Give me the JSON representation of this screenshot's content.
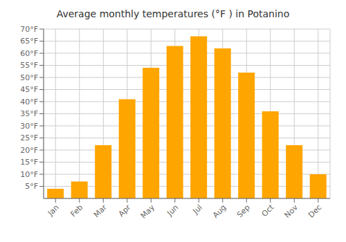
{
  "chart_data": {
    "type": "bar",
    "title": "Average monthly temperatures (°F ) in Potanino",
    "categories": [
      "Jan",
      "Feb",
      "Mar",
      "Apr",
      "May",
      "Jun",
      "Jul",
      "Aug",
      "Sep",
      "Oct",
      "Nov",
      "Dec"
    ],
    "values": [
      4,
      7,
      22,
      41,
      54,
      63,
      67,
      62,
      52,
      36,
      22,
      10
    ],
    "color": "#FFA500",
    "ylim": [
      0,
      70
    ],
    "yticks": [
      {
        "value": 5,
        "label": "5°F"
      },
      {
        "value": 10,
        "label": "10°F"
      },
      {
        "value": 15,
        "label": "15°F"
      },
      {
        "value": 20,
        "label": "20°F"
      },
      {
        "value": 25,
        "label": "25°F"
      },
      {
        "value": 30,
        "label": "30°F"
      },
      {
        "value": 35,
        "label": "35°F"
      },
      {
        "value": 40,
        "label": "40°F"
      },
      {
        "value": 45,
        "label": "45°F"
      },
      {
        "value": 50,
        "label": "50°F"
      },
      {
        "value": 55,
        "label": "55°F"
      },
      {
        "value": 60,
        "label": "60°F"
      },
      {
        "value": 65,
        "label": "65°F"
      },
      {
        "value": 70,
        "label": "70°F"
      }
    ],
    "grid": true
  }
}
